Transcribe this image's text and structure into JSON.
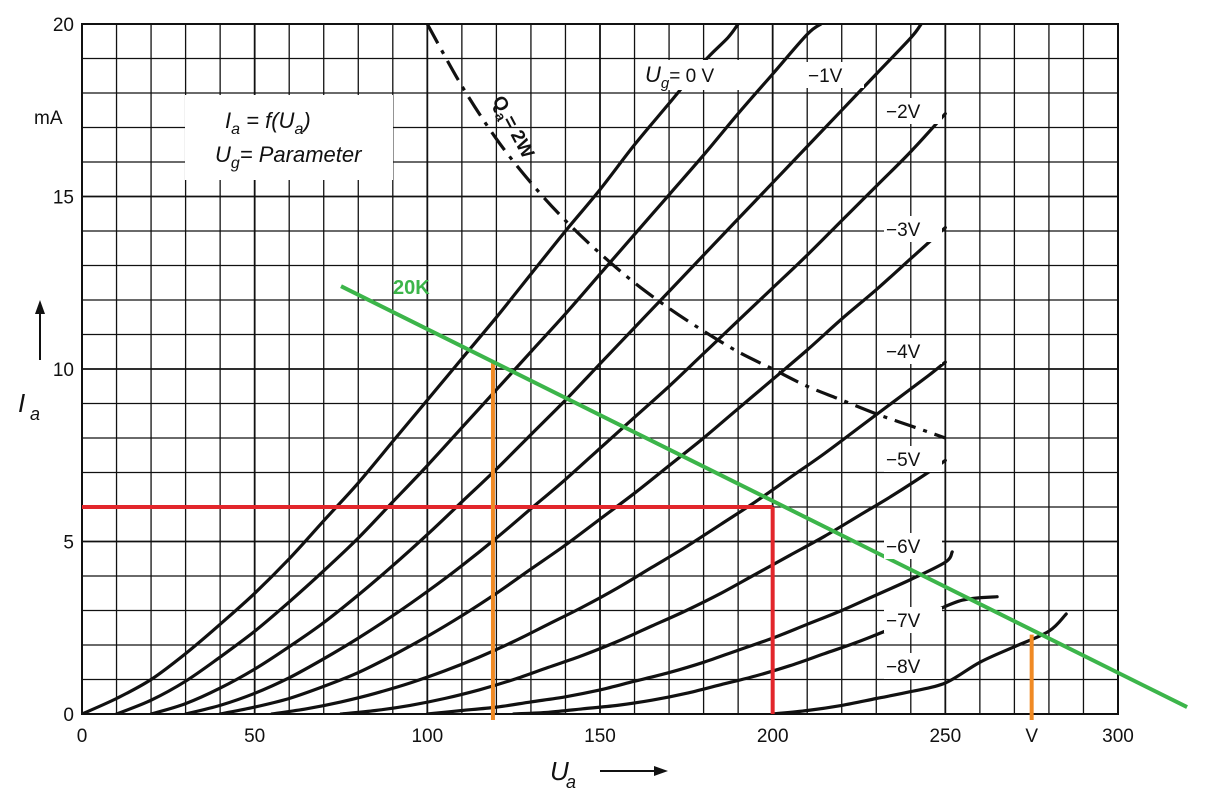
{
  "chart_data": {
    "type": "line",
    "x_axis": {
      "range": [
        0,
        300
      ],
      "tick_values": [
        0,
        50,
        100,
        150,
        200,
        250,
        300
      ],
      "tick_labels": [
        "0",
        "50",
        "100",
        "150",
        "200",
        "250",
        "300"
      ],
      "extra_tick_label": "V",
      "extra_tick_value": 275,
      "label": "U",
      "label_sub": "a"
    },
    "y_axis": {
      "range": [
        0,
        20
      ],
      "tick_values": [
        0,
        5,
        10,
        15,
        20
      ],
      "tick_labels": [
        "0",
        "5",
        "10",
        "15",
        "20"
      ],
      "unit": "mA",
      "label": "I",
      "label_sub": "a"
    },
    "grid": true,
    "equation_box": {
      "line1_main": "I",
      "line1_sub": "a",
      "line1_rest": " = f(U",
      "line1_sub2": "a",
      "line1_end": ")",
      "line2_main": "U",
      "line2_sub": "g",
      "line2_rest": "= Parameter"
    },
    "series": [
      {
        "name": "Ug = 0 V",
        "label_main": "U",
        "label_sub": "g",
        "label_rest": "= 0 V",
        "points": [
          [
            0,
            0
          ],
          [
            10,
            0.45
          ],
          [
            20,
            1.0
          ],
          [
            30,
            1.75
          ],
          [
            40,
            2.6
          ],
          [
            50,
            3.5
          ],
          [
            60,
            4.5
          ],
          [
            70,
            5.6
          ],
          [
            80,
            6.7
          ],
          [
            90,
            7.9
          ],
          [
            100,
            9.1
          ],
          [
            110,
            10.3
          ],
          [
            120,
            11.5
          ],
          [
            130,
            12.75
          ],
          [
            140,
            14.0
          ],
          [
            150,
            15.2
          ],
          [
            160,
            16.5
          ],
          [
            170,
            17.7
          ],
          [
            180,
            18.9
          ],
          [
            187,
            19.6
          ],
          [
            190,
            20.0
          ]
        ]
      },
      {
        "name": "-1V",
        "label": "−1V",
        "points": [
          [
            10,
            0
          ],
          [
            20,
            0.4
          ],
          [
            30,
            0.95
          ],
          [
            40,
            1.65
          ],
          [
            50,
            2.4
          ],
          [
            60,
            3.25
          ],
          [
            70,
            4.15
          ],
          [
            80,
            5.1
          ],
          [
            90,
            6.15
          ],
          [
            100,
            7.2
          ],
          [
            110,
            8.3
          ],
          [
            120,
            9.4
          ],
          [
            130,
            10.5
          ],
          [
            140,
            11.6
          ],
          [
            150,
            12.75
          ],
          [
            160,
            13.9
          ],
          [
            170,
            15.05
          ],
          [
            180,
            16.2
          ],
          [
            190,
            17.4
          ],
          [
            200,
            18.55
          ],
          [
            210,
            19.7
          ],
          [
            214,
            20.0
          ]
        ]
      },
      {
        "name": "-2V",
        "label": "−2V",
        "points": [
          [
            20,
            0
          ],
          [
            30,
            0.3
          ],
          [
            40,
            0.75
          ],
          [
            50,
            1.3
          ],
          [
            60,
            1.95
          ],
          [
            70,
            2.65
          ],
          [
            80,
            3.45
          ],
          [
            90,
            4.3
          ],
          [
            100,
            5.2
          ],
          [
            110,
            6.15
          ],
          [
            120,
            7.1
          ],
          [
            130,
            8.1
          ],
          [
            140,
            9.1
          ],
          [
            150,
            10.15
          ],
          [
            160,
            11.2
          ],
          [
            170,
            12.25
          ],
          [
            180,
            13.3
          ],
          [
            190,
            14.35
          ],
          [
            200,
            15.4
          ],
          [
            210,
            16.45
          ],
          [
            220,
            17.5
          ],
          [
            230,
            18.55
          ],
          [
            240,
            19.6
          ],
          [
            243,
            20.0
          ]
        ]
      },
      {
        "name": "-3V",
        "label": "−3V",
        "points": [
          [
            30,
            0
          ],
          [
            40,
            0.25
          ],
          [
            50,
            0.6
          ],
          [
            60,
            1.05
          ],
          [
            70,
            1.6
          ],
          [
            80,
            2.2
          ],
          [
            90,
            2.85
          ],
          [
            100,
            3.55
          ],
          [
            110,
            4.3
          ],
          [
            120,
            5.1
          ],
          [
            130,
            5.95
          ],
          [
            140,
            6.8
          ],
          [
            150,
            7.7
          ],
          [
            160,
            8.6
          ],
          [
            170,
            9.5
          ],
          [
            180,
            10.45
          ],
          [
            190,
            11.4
          ],
          [
            200,
            12.35
          ],
          [
            210,
            13.3
          ],
          [
            220,
            14.3
          ],
          [
            230,
            15.3
          ],
          [
            240,
            16.3
          ],
          [
            250,
            17.4
          ]
        ]
      },
      {
        "name": "-4V",
        "label": "−4V",
        "points": [
          [
            40,
            0
          ],
          [
            50,
            0.2
          ],
          [
            60,
            0.45
          ],
          [
            70,
            0.8
          ],
          [
            80,
            1.2
          ],
          [
            90,
            1.7
          ],
          [
            100,
            2.25
          ],
          [
            110,
            2.85
          ],
          [
            120,
            3.5
          ],
          [
            130,
            4.2
          ],
          [
            140,
            4.9
          ],
          [
            150,
            5.65
          ],
          [
            160,
            6.4
          ],
          [
            170,
            7.2
          ],
          [
            180,
            8.0
          ],
          [
            190,
            8.85
          ],
          [
            200,
            9.7
          ],
          [
            210,
            10.55
          ],
          [
            220,
            11.45
          ],
          [
            230,
            12.3
          ],
          [
            240,
            13.2
          ],
          [
            250,
            14.1
          ]
        ]
      },
      {
        "name": "-5V",
        "label": "−5V",
        "points": [
          [
            55,
            0
          ],
          [
            65,
            0.15
          ],
          [
            75,
            0.35
          ],
          [
            85,
            0.6
          ],
          [
            95,
            0.9
          ],
          [
            105,
            1.25
          ],
          [
            115,
            1.65
          ],
          [
            125,
            2.1
          ],
          [
            135,
            2.6
          ],
          [
            145,
            3.1
          ],
          [
            155,
            3.65
          ],
          [
            165,
            4.25
          ],
          [
            175,
            4.85
          ],
          [
            185,
            5.5
          ],
          [
            195,
            6.15
          ],
          [
            205,
            6.85
          ],
          [
            215,
            7.55
          ],
          [
            225,
            8.3
          ],
          [
            235,
            9.05
          ],
          [
            245,
            9.8
          ],
          [
            250,
            10.2
          ]
        ]
      },
      {
        "name": "-6V",
        "label": "−6V",
        "points": [
          [
            75,
            0
          ],
          [
            85,
            0.1
          ],
          [
            95,
            0.25
          ],
          [
            105,
            0.45
          ],
          [
            115,
            0.7
          ],
          [
            125,
            1.0
          ],
          [
            135,
            1.35
          ],
          [
            145,
            1.7
          ],
          [
            155,
            2.1
          ],
          [
            165,
            2.55
          ],
          [
            175,
            3.0
          ],
          [
            185,
            3.5
          ],
          [
            195,
            4.05
          ],
          [
            205,
            4.6
          ],
          [
            215,
            5.15
          ],
          [
            225,
            5.75
          ],
          [
            235,
            6.35
          ],
          [
            245,
            7.0
          ],
          [
            250,
            7.35
          ]
        ]
      },
      {
        "name": "-7V",
        "label": "−7V",
        "points": [
          [
            100,
            0
          ],
          [
            110,
            0.1
          ],
          [
            120,
            0.2
          ],
          [
            130,
            0.35
          ],
          [
            140,
            0.5
          ],
          [
            150,
            0.7
          ],
          [
            160,
            0.95
          ],
          [
            170,
            1.2
          ],
          [
            180,
            1.5
          ],
          [
            190,
            1.85
          ],
          [
            200,
            2.2
          ],
          [
            210,
            2.6
          ],
          [
            220,
            3.0
          ],
          [
            230,
            3.45
          ],
          [
            240,
            3.9
          ],
          [
            250,
            4.4
          ],
          [
            252,
            4.7
          ]
        ]
      },
      {
        "name": "-8V",
        "label": "−8V",
        "points": [
          [
            125,
            0
          ],
          [
            135,
            0.05
          ],
          [
            145,
            0.15
          ],
          [
            155,
            0.25
          ],
          [
            165,
            0.4
          ],
          [
            175,
            0.6
          ],
          [
            185,
            0.85
          ],
          [
            195,
            1.1
          ],
          [
            205,
            1.4
          ],
          [
            215,
            1.75
          ],
          [
            225,
            2.1
          ],
          [
            235,
            2.5
          ],
          [
            245,
            2.9
          ],
          [
            255,
            3.3
          ],
          [
            265,
            3.4
          ]
        ]
      },
      {
        "name": "-8V ext",
        "label": "",
        "points": [
          [
            200,
            0
          ],
          [
            210,
            0.1
          ],
          [
            220,
            0.25
          ],
          [
            230,
            0.45
          ],
          [
            240,
            0.65
          ],
          [
            250,
            0.9
          ],
          [
            260,
            1.5
          ],
          [
            270,
            1.95
          ],
          [
            280,
            2.4
          ],
          [
            285,
            2.9
          ]
        ]
      }
    ],
    "power_limit": {
      "label_main": "Q",
      "label_sub": "a",
      "label_rest": "= 2W",
      "points": [
        [
          100,
          20
        ],
        [
          110,
          18.2
        ],
        [
          120,
          16.67
        ],
        [
          130,
          15.4
        ],
        [
          140,
          14.3
        ],
        [
          150,
          13.35
        ],
        [
          160,
          12.5
        ],
        [
          170,
          11.76
        ],
        [
          180,
          11.1
        ],
        [
          190,
          10.5
        ],
        [
          200,
          10.0
        ],
        [
          210,
          9.5
        ],
        [
          220,
          9.1
        ],
        [
          230,
          8.7
        ],
        [
          240,
          8.35
        ],
        [
          250,
          8.0
        ]
      ]
    },
    "load_line": {
      "label": "20K",
      "color": "#3cb54a",
      "points": [
        [
          75,
          12.4
        ],
        [
          320,
          0.2
        ]
      ]
    },
    "red_guides": {
      "color": "#e2262b",
      "operating_point": [
        200,
        6.0
      ]
    },
    "orange_guides": {
      "color": "#f08a24",
      "x_values": [
        119,
        275
      ],
      "y_values": [
        10.2,
        2.3
      ]
    },
    "colors": {
      "curve": "#111111",
      "grid": "#111111",
      "background": "#ffffff"
    }
  }
}
